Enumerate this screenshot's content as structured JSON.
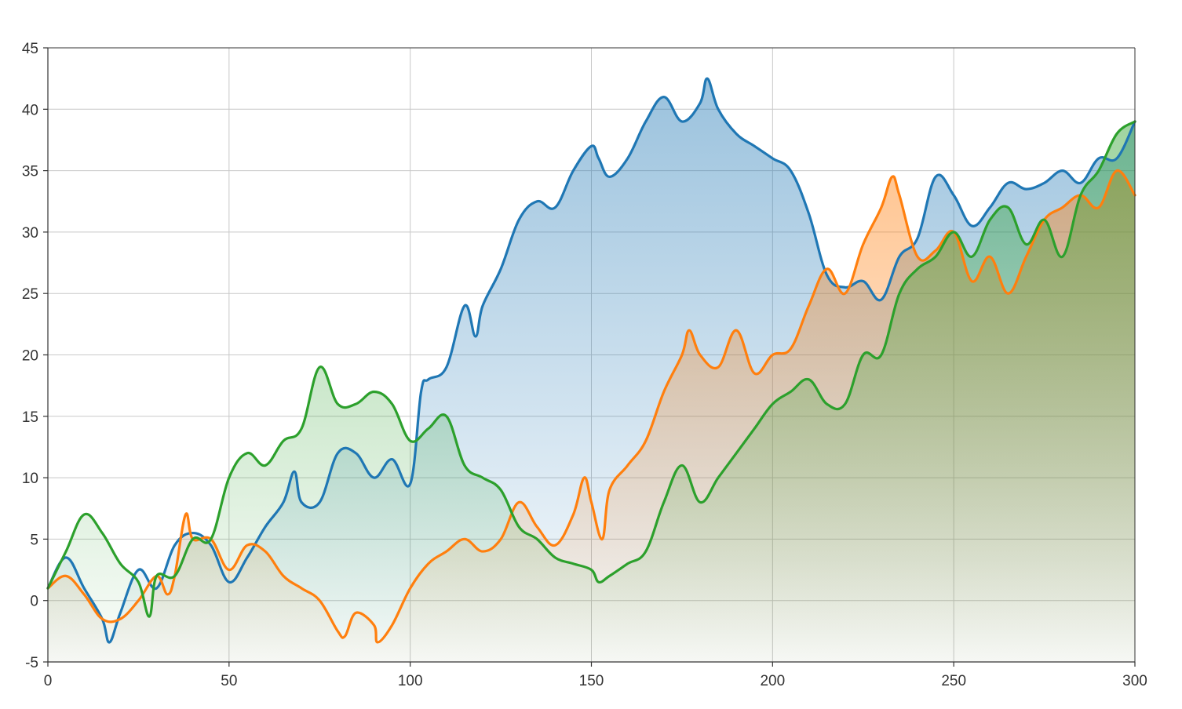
{
  "chart_data": {
    "type": "area",
    "title": "",
    "xlabel": "",
    "ylabel": "",
    "xlim": [
      0,
      300
    ],
    "ylim": [
      -5,
      45
    ],
    "x_ticks": [
      0,
      50,
      100,
      150,
      200,
      250,
      300
    ],
    "y_ticks": [
      -5,
      0,
      5,
      10,
      15,
      20,
      25,
      30,
      35,
      40,
      45
    ],
    "grid": true,
    "legend": "none",
    "series": [
      {
        "color": "#1f77b4",
        "x": [
          0,
          5,
          10,
          15,
          17,
          20,
          25,
          30,
          35,
          40,
          45,
          50,
          55,
          60,
          65,
          68,
          70,
          75,
          80,
          85,
          90,
          95,
          100,
          103,
          105,
          110,
          115,
          118,
          120,
          125,
          130,
          135,
          140,
          145,
          150,
          152,
          155,
          160,
          165,
          170,
          175,
          180,
          182,
          185,
          190,
          195,
          200,
          205,
          210,
          215,
          220,
          225,
          230,
          235,
          240,
          245,
          250,
          255,
          260,
          265,
          270,
          275,
          280,
          285,
          290,
          295,
          300
        ],
        "values": [
          1,
          3.5,
          1,
          -1.5,
          -3.4,
          -1,
          2.5,
          1,
          4.5,
          5.5,
          4.5,
          1.5,
          3.5,
          6,
          8,
          10.5,
          8,
          8,
          12,
          12,
          10,
          11.5,
          9.5,
          17,
          18,
          19,
          24,
          21.5,
          24,
          27,
          31,
          32.5,
          32,
          35,
          37,
          36,
          34.5,
          36,
          39,
          41,
          39,
          40.5,
          42.5,
          40,
          38,
          37,
          36,
          35,
          31.5,
          26.5,
          25.5,
          26,
          24.5,
          28,
          29.5,
          34.5,
          33,
          30.5,
          32,
          34,
          33.5,
          34,
          35,
          34,
          36,
          36,
          39
        ]
      },
      {
        "color": "#ff7f0e",
        "x": [
          0,
          5,
          10,
          15,
          20,
          25,
          30,
          33,
          35,
          38,
          40,
          45,
          50,
          55,
          60,
          65,
          70,
          75,
          80,
          82,
          85,
          90,
          91,
          95,
          100,
          105,
          110,
          115,
          120,
          125,
          130,
          135,
          140,
          145,
          148,
          150,
          153,
          155,
          160,
          165,
          170,
          175,
          177,
          180,
          185,
          190,
          195,
          200,
          205,
          210,
          215,
          220,
          225,
          230,
          233,
          235,
          240,
          245,
          250,
          255,
          260,
          265,
          270,
          275,
          280,
          285,
          290,
          295,
          300
        ],
        "values": [
          1,
          2,
          0.5,
          -1.5,
          -1.5,
          0,
          2,
          0.5,
          2,
          7,
          5,
          5,
          2.5,
          4.5,
          4,
          2,
          1,
          0,
          -2.5,
          -2.9,
          -1,
          -2,
          -3.4,
          -2,
          1,
          3,
          4,
          5,
          4,
          5,
          8,
          6,
          4.5,
          7,
          10,
          8,
          5,
          9,
          11,
          13,
          17,
          20,
          22,
          20,
          19,
          22,
          18.5,
          20,
          20.5,
          24,
          27,
          25,
          29,
          32,
          34.5,
          33,
          28,
          28.5,
          30,
          26,
          28,
          25,
          28,
          31,
          32,
          33,
          32,
          35,
          33
        ]
      },
      {
        "color": "#2ca02c",
        "x": [
          0,
          5,
          10,
          15,
          20,
          25,
          28,
          30,
          35,
          40,
          45,
          50,
          55,
          60,
          65,
          70,
          75,
          80,
          85,
          90,
          95,
          100,
          105,
          110,
          115,
          120,
          125,
          130,
          135,
          140,
          145,
          150,
          152,
          155,
          160,
          165,
          170,
          175,
          180,
          185,
          190,
          195,
          200,
          205,
          210,
          215,
          220,
          225,
          230,
          235,
          240,
          245,
          250,
          255,
          260,
          265,
          270,
          275,
          280,
          285,
          290,
          295,
          300
        ],
        "values": [
          1,
          4,
          7,
          5.5,
          3,
          1.5,
          -1.3,
          2,
          2,
          5,
          5,
          10,
          12,
          11,
          13,
          14,
          19,
          16,
          16,
          17,
          16,
          13,
          14,
          15,
          11,
          10,
          9,
          6,
          5,
          3.5,
          3,
          2.5,
          1.5,
          2,
          3,
          4,
          8,
          11,
          8,
          10,
          12,
          14,
          16,
          17,
          18,
          16,
          16,
          20,
          20,
          25,
          27,
          28,
          30,
          28,
          31,
          32,
          29,
          31,
          28,
          33,
          35,
          38,
          39
        ]
      }
    ]
  }
}
